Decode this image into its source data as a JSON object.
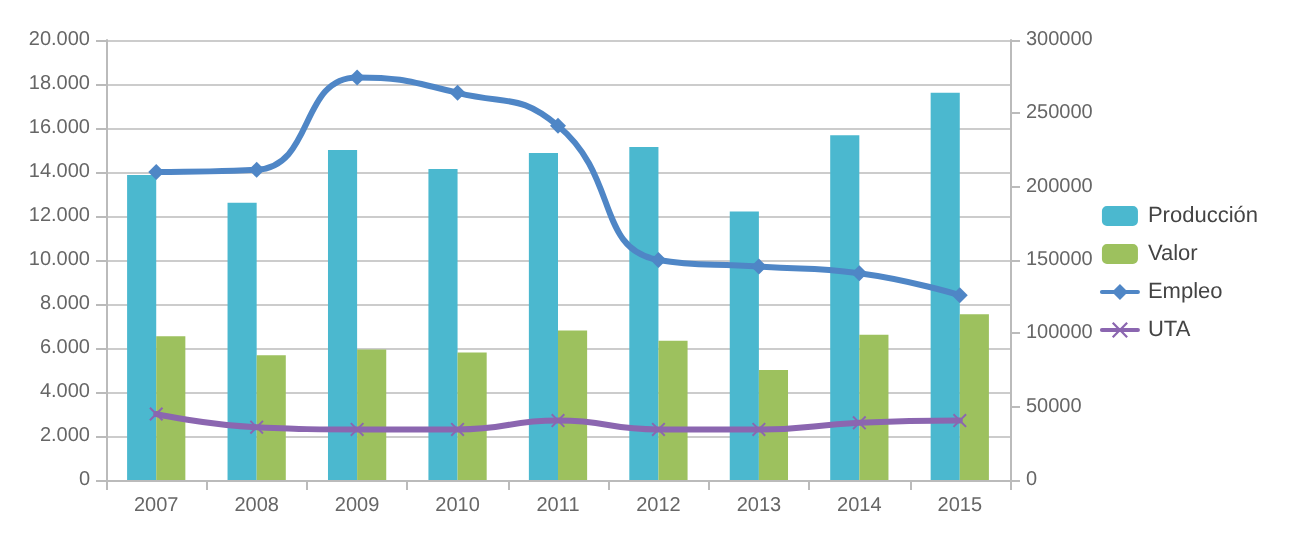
{
  "chart_data": {
    "type": "bar",
    "categories": [
      "2007",
      "2008",
      "2009",
      "2010",
      "2011",
      "2012",
      "2013",
      "2014",
      "2015"
    ],
    "series": [
      {
        "name": "Producción",
        "axis": "y2",
        "color": "#4bb8cf",
        "values": [
          208000,
          189000,
          225000,
          212000,
          223000,
          227000,
          183000,
          235000,
          264000
        ]
      },
      {
        "name": "Valor",
        "axis": "y2",
        "color": "#9dc15e",
        "values": [
          98000,
          85000,
          89000,
          87000,
          102000,
          95000,
          75000,
          99000,
          113000
        ]
      },
      {
        "name": "Empleo",
        "type": "line",
        "axis": "y",
        "color": "#4f86c6",
        "marker": "diamond",
        "values": [
          14000,
          14100,
          18300,
          17600,
          16100,
          10000,
          9700,
          9400,
          8400
        ]
      },
      {
        "name": "UTA",
        "type": "line",
        "axis": "y",
        "color": "#8b66b0",
        "marker": "cross",
        "values": [
          3000,
          2400,
          2300,
          2300,
          2700,
          2300,
          2300,
          2600,
          2700
        ]
      }
    ],
    "ylim": [
      0,
      20000
    ],
    "yticks": [
      {
        "value": 0,
        "label": "0"
      },
      {
        "value": 2000,
        "label": "2.000"
      },
      {
        "value": 4000,
        "label": "4.000"
      },
      {
        "value": 6000,
        "label": "6.000"
      },
      {
        "value": 8000,
        "label": "8.000"
      },
      {
        "value": 10000,
        "label": "10.000"
      },
      {
        "value": 12000,
        "label": "12.000"
      },
      {
        "value": 14000,
        "label": "14.000"
      },
      {
        "value": 16000,
        "label": "16.000"
      },
      {
        "value": 18000,
        "label": "18.000"
      },
      {
        "value": 20000,
        "label": "20.000"
      }
    ],
    "y2lim": [
      0,
      300000
    ],
    "y2ticks": [
      0,
      50000,
      100000,
      150000,
      200000,
      250000,
      300000
    ],
    "grid": "y",
    "legend": "right"
  }
}
